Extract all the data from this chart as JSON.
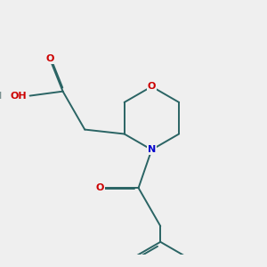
{
  "bg_color": "#efefef",
  "bond_color": "#2a6464",
  "atom_colors": {
    "O": "#cc0000",
    "N": "#0000cc",
    "H": "#7a9090"
  },
  "bond_width": 1.4,
  "figsize": [
    3.0,
    3.0
  ],
  "dpi": 100
}
